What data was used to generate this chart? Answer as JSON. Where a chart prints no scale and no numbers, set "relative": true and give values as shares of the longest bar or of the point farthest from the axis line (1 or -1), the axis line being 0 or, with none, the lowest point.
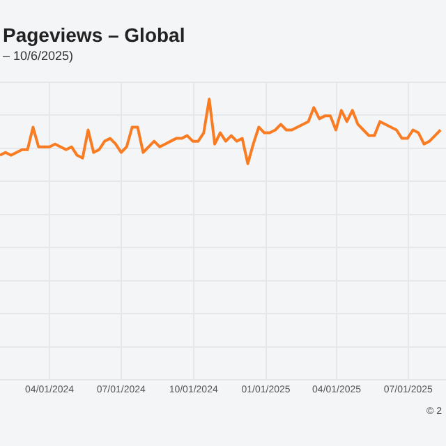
{
  "chart_data": {
    "type": "line",
    "title": "Pageviews – Global",
    "subtitle": "– 10/6/2025)",
    "annotations": [
      "© 2"
    ],
    "relative": true,
    "grid": true,
    "legend": false,
    "marker": "none",
    "line_style": "solid",
    "xlim": [
      "2024-01-29",
      "2025-08-18"
    ],
    "xticks": [
      {
        "value": "2024-04-01",
        "label": "04/01/2024"
      },
      {
        "value": "2024-07-01",
        "label": "07/01/2024"
      },
      {
        "value": "2024-10-01",
        "label": "10/01/2024"
      },
      {
        "value": "2025-01-01",
        "label": "01/01/2025"
      },
      {
        "value": "2025-04-01",
        "label": "04/01/2025"
      },
      {
        "value": "2025-07-01",
        "label": "07/01/2025"
      }
    ],
    "x": [
      "2024-01-29",
      "2024-02-05",
      "2024-02-12",
      "2024-02-19",
      "2024-02-26",
      "2024-03-04",
      "2024-03-11",
      "2024-03-18",
      "2024-03-25",
      "2024-04-01",
      "2024-04-08",
      "2024-04-15",
      "2024-04-22",
      "2024-04-29",
      "2024-05-06",
      "2024-05-13",
      "2024-05-20",
      "2024-05-27",
      "2024-06-03",
      "2024-06-10",
      "2024-06-17",
      "2024-06-24",
      "2024-07-01",
      "2024-07-08",
      "2024-07-15",
      "2024-07-22",
      "2024-07-29",
      "2024-08-05",
      "2024-08-12",
      "2024-08-19",
      "2024-08-26",
      "2024-09-02",
      "2024-09-09",
      "2024-09-16",
      "2024-09-23",
      "2024-09-30",
      "2024-10-07",
      "2024-10-14",
      "2024-10-21",
      "2024-10-28",
      "2024-11-04",
      "2024-11-11",
      "2024-11-18",
      "2024-11-25",
      "2024-12-02",
      "2024-12-09",
      "2024-12-16",
      "2024-12-23",
      "2024-12-30",
      "2025-01-06",
      "2025-01-13",
      "2025-01-20",
      "2025-01-27",
      "2025-02-03",
      "2025-02-10",
      "2025-02-17",
      "2025-02-24",
      "2025-03-03",
      "2025-03-10",
      "2025-03-17",
      "2025-03-24",
      "2025-03-31",
      "2025-04-07",
      "2025-04-14",
      "2025-04-21",
      "2025-04-28",
      "2025-05-05",
      "2025-05-12",
      "2025-05-19",
      "2025-05-26",
      "2025-06-02",
      "2025-06-09",
      "2025-06-16",
      "2025-06-23",
      "2025-06-30",
      "2025-07-07",
      "2025-07-14",
      "2025-07-21",
      "2025-07-28",
      "2025-08-04",
      "2025-08-11"
    ],
    "series": [
      {
        "color": "#f97c22",
        "values": [
          0.8,
          0.81,
          0.8,
          0.81,
          0.82,
          0.82,
          0.9,
          0.83,
          0.83,
          0.83,
          0.84,
          0.83,
          0.82,
          0.83,
          0.8,
          0.79,
          0.89,
          0.81,
          0.82,
          0.85,
          0.86,
          0.84,
          0.81,
          0.83,
          0.9,
          0.9,
          0.81,
          0.83,
          0.85,
          0.83,
          0.84,
          0.85,
          0.86,
          0.86,
          0.87,
          0.85,
          0.85,
          0.88,
          1.0,
          0.84,
          0.88,
          0.85,
          0.87,
          0.85,
          0.86,
          0.77,
          0.84,
          0.9,
          0.88,
          0.88,
          0.89,
          0.91,
          0.89,
          0.89,
          0.9,
          0.91,
          0.92,
          0.97,
          0.93,
          0.94,
          0.94,
          0.89,
          0.96,
          0.92,
          0.96,
          0.91,
          0.89,
          0.87,
          0.87,
          0.92,
          0.91,
          0.9,
          0.89,
          0.86,
          0.86,
          0.89,
          0.88,
          0.84,
          0.85,
          0.87,
          0.89
        ]
      }
    ]
  }
}
